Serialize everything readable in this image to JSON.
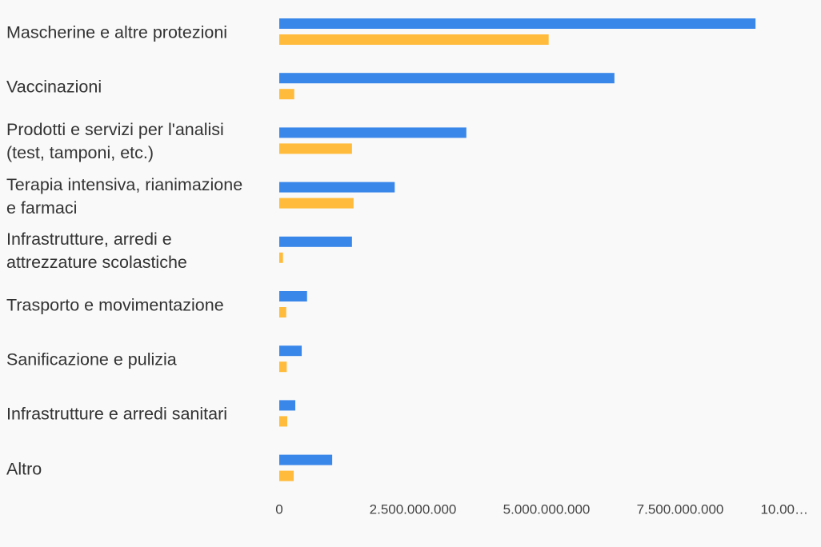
{
  "chart_data": {
    "type": "bar",
    "orientation": "horizontal",
    "categories": [
      "Mascherine e altre protezioni",
      "Vaccinazioni",
      "Prodotti e servizi per l'analisi\n(test, tamponi, etc.)",
      "Terapia intensiva, rianimazione\ne farmaci",
      "Infrastrutture, arredi e\nattrezzature scolastiche",
      "Trasporto e movimentazione",
      "Sanificazione e pulizia",
      "Infrastrutture e arredi sanitari",
      "Altro"
    ],
    "series": [
      {
        "color": "#3a87ea",
        "values": [
          8910000000,
          6270000000,
          3500000000,
          2160000000,
          1360000000,
          520000000,
          420000000,
          300000000,
          990000000
        ]
      },
      {
        "color": "#ffbb3b",
        "values": [
          5040000000,
          280000000,
          1360000000,
          1390000000,
          70000000,
          130000000,
          140000000,
          150000000,
          270000000
        ]
      }
    ],
    "xlim": [
      0,
      10000000000
    ],
    "xticks": [
      0,
      {
        "value": 2500000000,
        "label": "2.500.000.000"
      },
      {
        "value": 5000000000,
        "label": "5.000.000.000"
      },
      {
        "value": 7500000000,
        "label": "7.500.000.000"
      },
      {
        "value": 10000000000,
        "label": "10.00…"
      }
    ],
    "grid": false
  }
}
